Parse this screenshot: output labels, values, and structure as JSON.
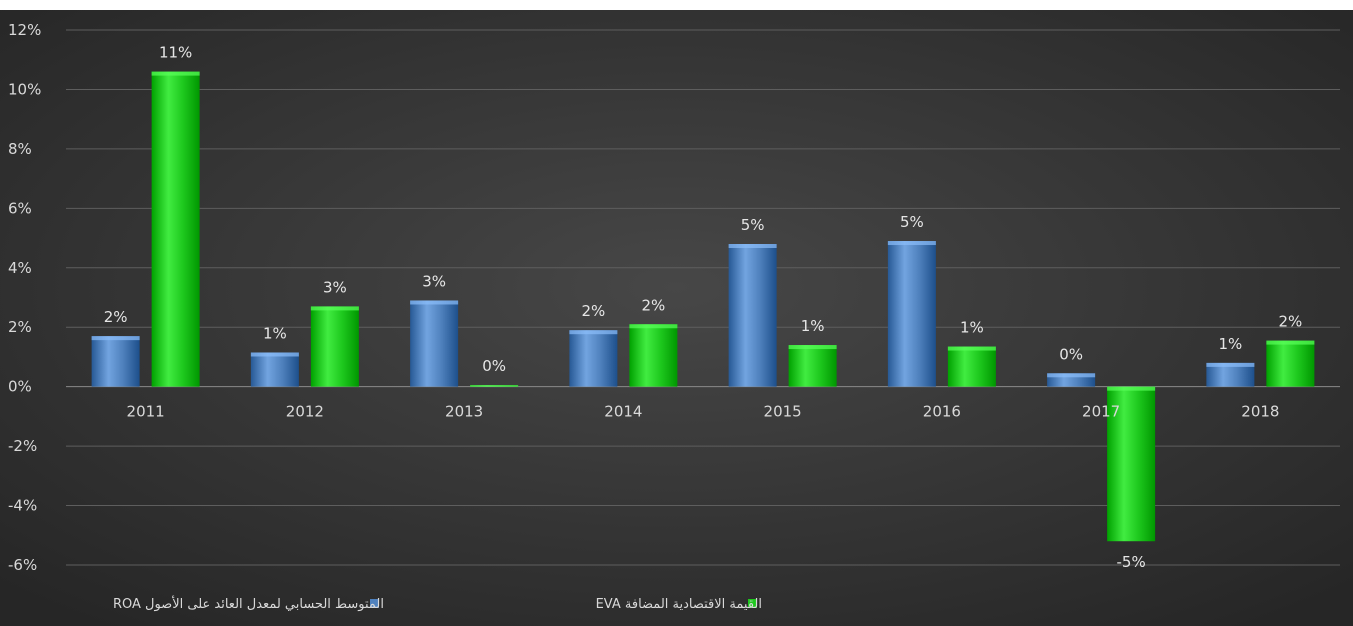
{
  "chart_data": {
    "type": "bar",
    "categories": [
      "2011",
      "2012",
      "2013",
      "2014",
      "2015",
      "2016",
      "2017",
      "2018"
    ],
    "series": [
      {
        "name": "المتوسط الحسابي لمعدل العائد على الأصول ROA",
        "color": "#4f81bd",
        "values": [
          1.7,
          1.15,
          2.9,
          1.9,
          4.8,
          4.9,
          0.45,
          0.8
        ],
        "labels": [
          "2%",
          "1%",
          "3%",
          "2%",
          "5%",
          "5%",
          "0%",
          "1%"
        ]
      },
      {
        "name": "القيمة الاقتصادية المضافة EVA",
        "color": "#1ec91e",
        "values": [
          10.6,
          2.7,
          0.05,
          2.1,
          1.4,
          1.35,
          -5.2,
          1.55
        ],
        "labels": [
          "11%",
          "3%",
          "0%",
          "2%",
          "1%",
          "1%",
          "-5%",
          "2%"
        ]
      }
    ],
    "y_ticks": [
      "12%",
      "10%",
      "8%",
      "6%",
      "4%",
      "2%",
      "0%",
      "-2%",
      "-4%",
      "-6%"
    ],
    "ylim": [
      -6,
      12
    ],
    "ytick_step": 2,
    "grid": true,
    "legend_position": "bottom",
    "background": "#383838"
  }
}
